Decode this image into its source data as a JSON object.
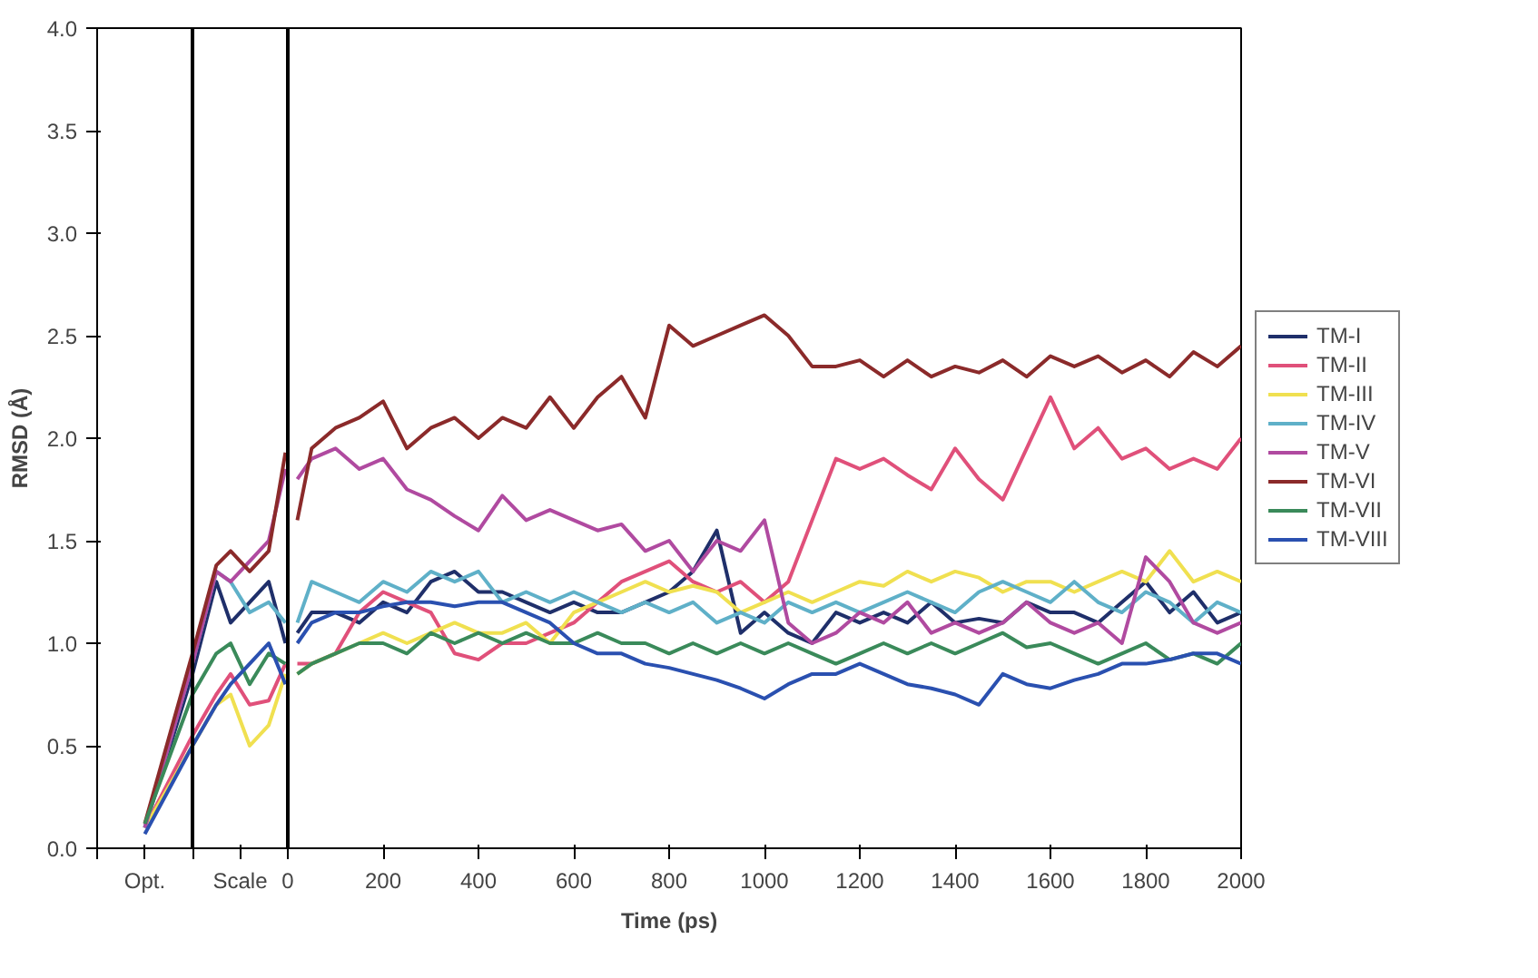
{
  "chart_data": {
    "type": "line",
    "xlabel": "Time (ps)",
    "ylabel": "RMSD (Å)",
    "x": [
      -300,
      -200,
      -150,
      -120,
      -80,
      -40,
      -5,
      -2,
      20,
      50,
      100,
      150,
      200,
      250,
      300,
      350,
      400,
      450,
      500,
      550,
      600,
      650,
      700,
      750,
      800,
      850,
      900,
      950,
      1000,
      1050,
      1100,
      1150,
      1200,
      1250,
      1300,
      1350,
      1400,
      1450,
      1500,
      1550,
      1600,
      1650,
      1700,
      1750,
      1800,
      1850,
      1900,
      1950,
      2000
    ],
    "series": [
      {
        "name": "TM-I",
        "color": "#1f2f6a",
        "values": [
          0.1,
          0.85,
          1.3,
          1.1,
          1.2,
          1.3,
          1.0,
          null,
          1.05,
          1.15,
          1.15,
          1.1,
          1.2,
          1.15,
          1.3,
          1.35,
          1.25,
          1.25,
          1.2,
          1.15,
          1.2,
          1.15,
          1.15,
          1.2,
          1.25,
          1.35,
          1.55,
          1.05,
          1.15,
          1.05,
          1.0,
          1.15,
          1.1,
          1.15,
          1.1,
          1.2,
          1.1,
          1.12,
          1.1,
          1.2,
          1.15,
          1.15,
          1.1,
          1.2,
          1.3,
          1.15,
          1.25,
          1.1,
          1.15
        ]
      },
      {
        "name": "TM-II",
        "color": "#e0507a",
        "values": [
          0.1,
          0.55,
          0.75,
          0.85,
          0.7,
          0.72,
          0.9,
          null,
          0.9,
          0.9,
          0.95,
          1.15,
          1.25,
          1.2,
          1.15,
          0.95,
          0.92,
          1.0,
          1.0,
          1.05,
          1.1,
          1.2,
          1.3,
          1.35,
          1.4,
          1.3,
          1.25,
          1.3,
          1.2,
          1.3,
          1.6,
          1.9,
          1.85,
          1.9,
          1.82,
          1.75,
          1.95,
          1.8,
          1.7,
          1.95,
          2.2,
          1.95,
          2.05,
          1.9,
          1.95,
          1.85,
          1.9,
          1.85,
          2.0
        ]
      },
      {
        "name": "TM-III",
        "color": "#f0e050",
        "values": [
          0.1,
          0.5,
          0.7,
          0.75,
          0.5,
          0.6,
          0.85,
          null,
          0.85,
          0.9,
          0.95,
          1.0,
          1.05,
          1.0,
          1.05,
          1.1,
          1.05,
          1.05,
          1.1,
          1.0,
          1.15,
          1.2,
          1.25,
          1.3,
          1.25,
          1.28,
          1.25,
          1.15,
          1.2,
          1.25,
          1.2,
          1.25,
          1.3,
          1.28,
          1.35,
          1.3,
          1.35,
          1.32,
          1.25,
          1.3,
          1.3,
          1.25,
          1.3,
          1.35,
          1.3,
          1.45,
          1.3,
          1.35,
          1.3
        ]
      },
      {
        "name": "TM-IV",
        "color": "#5fb0c8",
        "values": [
          0.1,
          0.9,
          1.35,
          1.3,
          1.15,
          1.2,
          1.1,
          null,
          1.1,
          1.3,
          1.25,
          1.2,
          1.3,
          1.25,
          1.35,
          1.3,
          1.35,
          1.2,
          1.25,
          1.2,
          1.25,
          1.2,
          1.15,
          1.2,
          1.15,
          1.2,
          1.1,
          1.15,
          1.1,
          1.2,
          1.15,
          1.2,
          1.15,
          1.2,
          1.25,
          1.2,
          1.15,
          1.25,
          1.3,
          1.25,
          1.2,
          1.3,
          1.2,
          1.15,
          1.25,
          1.2,
          1.1,
          1.2,
          1.15
        ]
      },
      {
        "name": "TM-V",
        "color": "#b04aa0",
        "values": [
          0.1,
          0.9,
          1.35,
          1.3,
          1.4,
          1.5,
          1.85,
          null,
          1.8,
          1.9,
          1.95,
          1.85,
          1.9,
          1.75,
          1.7,
          1.62,
          1.55,
          1.72,
          1.6,
          1.65,
          1.6,
          1.55,
          1.58,
          1.45,
          1.5,
          1.35,
          1.5,
          1.45,
          1.6,
          1.1,
          1.0,
          1.05,
          1.15,
          1.1,
          1.2,
          1.05,
          1.1,
          1.05,
          1.1,
          1.2,
          1.1,
          1.05,
          1.1,
          1.0,
          1.42,
          1.3,
          1.1,
          1.05,
          1.1
        ]
      },
      {
        "name": "TM-VI",
        "color": "#8b2a2a",
        "values": [
          0.12,
          0.95,
          1.38,
          1.45,
          1.35,
          1.45,
          1.93,
          null,
          1.6,
          1.95,
          2.05,
          2.1,
          2.18,
          1.95,
          2.05,
          2.1,
          2.0,
          2.1,
          2.05,
          2.2,
          2.05,
          2.2,
          2.3,
          2.1,
          2.55,
          2.45,
          2.5,
          2.55,
          2.6,
          2.5,
          2.35,
          2.35,
          2.38,
          2.3,
          2.38,
          2.3,
          2.35,
          2.32,
          2.38,
          2.3,
          2.4,
          2.35,
          2.4,
          2.32,
          2.38,
          2.3,
          2.42,
          2.35,
          2.45
        ]
      },
      {
        "name": "TM-VII",
        "color": "#3a8a5a",
        "values": [
          0.12,
          0.75,
          0.95,
          1.0,
          0.8,
          0.95,
          0.9,
          null,
          0.85,
          0.9,
          0.95,
          1.0,
          1.0,
          0.95,
          1.05,
          1.0,
          1.05,
          1.0,
          1.05,
          1.0,
          1.0,
          1.05,
          1.0,
          1.0,
          0.95,
          1.0,
          0.95,
          1.0,
          0.95,
          1.0,
          0.95,
          0.9,
          0.95,
          1.0,
          0.95,
          1.0,
          0.95,
          1.0,
          1.05,
          0.98,
          1.0,
          0.95,
          0.9,
          0.95,
          1.0,
          0.92,
          0.95,
          0.9,
          1.0
        ]
      },
      {
        "name": "TM-VIII",
        "color": "#2a50b0",
        "values": [
          0.07,
          0.5,
          0.7,
          0.8,
          0.9,
          1.0,
          0.8,
          null,
          1.0,
          1.1,
          1.15,
          1.15,
          1.18,
          1.2,
          1.2,
          1.18,
          1.2,
          1.2,
          1.15,
          1.1,
          1.0,
          0.95,
          0.95,
          0.9,
          0.88,
          0.85,
          0.82,
          0.78,
          0.73,
          0.8,
          0.85,
          0.85,
          0.9,
          0.85,
          0.8,
          0.78,
          0.75,
          0.7,
          0.85,
          0.8,
          0.78,
          0.82,
          0.85,
          0.9,
          0.9,
          0.92,
          0.95,
          0.95,
          0.9
        ]
      }
    ],
    "xlim": [
      -400,
      2000
    ],
    "xticks": [
      {
        "value": -400,
        "label": null
      },
      {
        "value": -300,
        "label": "Opt."
      },
      {
        "value": -200,
        "label": null
      },
      {
        "value": -100,
        "label": "Scale"
      },
      0,
      200,
      400,
      600,
      800,
      1000,
      1200,
      1400,
      1600,
      1800,
      2000
    ],
    "ylim": [
      0,
      4
    ],
    "yticks": [
      {
        "value": 0,
        "label": "0.0"
      },
      {
        "value": 0.5,
        "label": "0.5"
      },
      {
        "value": 1,
        "label": "1.0"
      },
      {
        "value": 1.5,
        "label": "1.5"
      },
      {
        "value": 2,
        "label": "2.0"
      },
      {
        "value": 2.5,
        "label": "2.5"
      },
      {
        "value": 3,
        "label": "3.0"
      },
      {
        "value": 3.5,
        "label": "3.5"
      },
      {
        "value": 4,
        "label": "4.0"
      }
    ],
    "ref_lines": [
      {
        "axis": "x",
        "value": -200,
        "color": "#000000"
      },
      {
        "axis": "x",
        "value": 0,
        "color": "#000000"
      }
    ],
    "grid": false,
    "legend": "right",
    "marker": "none",
    "line_style": "solid"
  }
}
